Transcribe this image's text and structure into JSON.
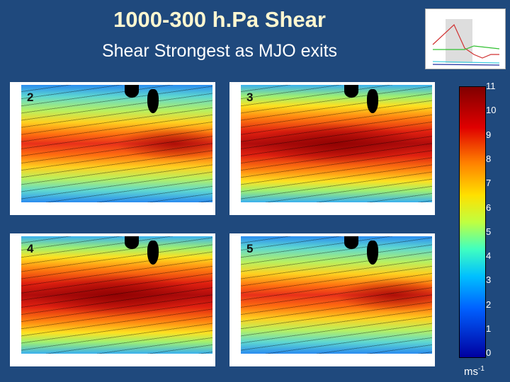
{
  "title": "1000-300 h.Pa Shear",
  "subtitle": "Shear Strongest as MJO exits",
  "panels": [
    {
      "label": "2"
    },
    {
      "label": "3"
    },
    {
      "label": "4"
    },
    {
      "label": "5"
    }
  ],
  "colorbar": {
    "ticks": [
      "11",
      "10",
      "9",
      "8",
      "7",
      "6",
      "5",
      "4",
      "3",
      "2",
      "1",
      "0"
    ],
    "unit": "ms",
    "unit_exp": "-1"
  },
  "colors": {
    "background": "#1f497d",
    "title": "#fff7d0"
  }
}
